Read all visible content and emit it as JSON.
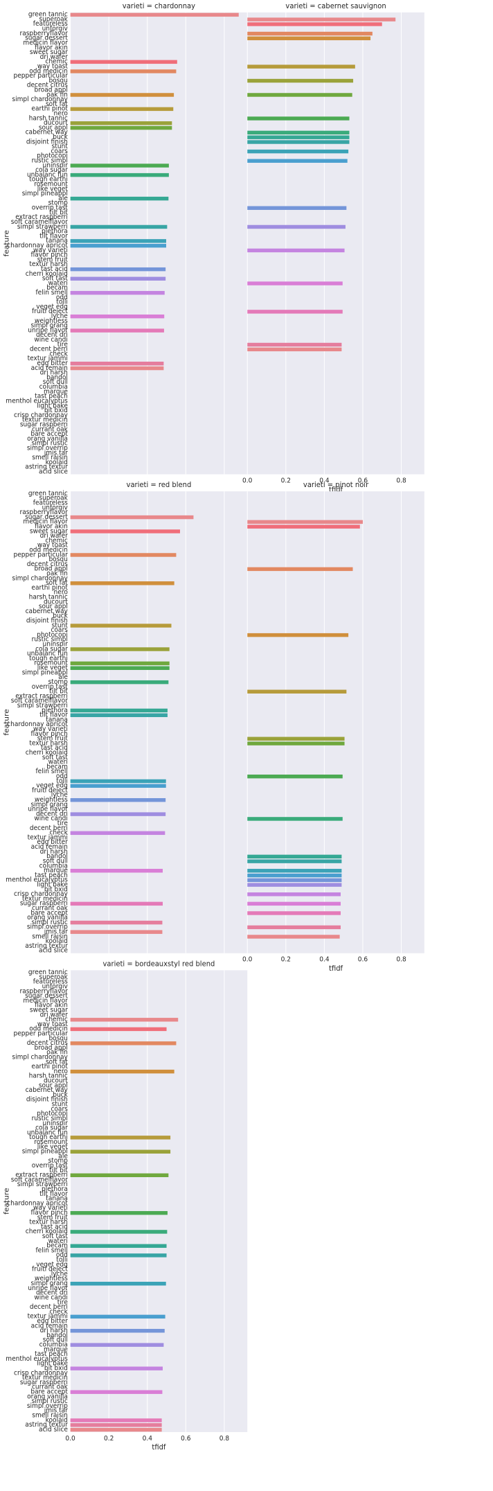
{
  "chart_data": {
    "type": "bar",
    "orientation": "horizontal",
    "xlabel": "tfidf",
    "ylabel": "feature",
    "xlim": [
      0,
      0.92
    ],
    "xticks": [
      "0.0",
      "0.2",
      "0.4",
      "0.6",
      "0.8"
    ],
    "grid": true,
    "categories": [
      "green tannic",
      "superoak",
      "featureless",
      "unforgiv",
      "raspberryflavor",
      "sugar dessert",
      "medicin flavor",
      "flavor akin",
      "sweet sugar",
      "dri wafer",
      "chemic",
      "way toast",
      "odd medicin",
      "pepper particular",
      "bosqu",
      "decent citrus",
      "broad appl",
      "oak fin",
      "simpl chardonnay",
      "soft fat",
      "earthi pinot",
      "nero",
      "harsh tannic",
      "ducourt",
      "sour appl",
      "cabernet way",
      "buck",
      "disjoint finish",
      "stunt",
      "coars",
      "photocopi",
      "rustic simpl",
      "uninspir",
      "cola sugar",
      "unbalanc fun",
      "tough earthi",
      "rosemount",
      "like veget",
      "simpl pineappl",
      "ale",
      "stomp",
      "overrip tast",
      "tilt bit",
      "extract raspberri",
      "soft caramelflavor",
      "simpl strawberri",
      "plethora",
      "tilt flavor",
      "tanana",
      "chardonnay apricot",
      "way varieti",
      "flavor pinch",
      "stem fruit",
      "textur harsh",
      "tast acid",
      "cherri koolaid",
      "soft tast",
      "wateri",
      "becam",
      "felin smell",
      "odd",
      "tolli",
      "veget edg",
      "fruiti deject",
      "lyche",
      "weightless",
      "simpl orang",
      "unripe flavor",
      "decent dri",
      "wine candi",
      "tire",
      "decent berri",
      "check",
      "textur jammi",
      "edg bitter",
      "acid remain",
      "dri harsh",
      "bandol",
      "soft dull",
      "columbia",
      "marque",
      "tast peach",
      "menthol eucalyptus",
      "light bake",
      "bit bxid",
      "crisp chardonnay",
      "textur medicin",
      "sugar raspberri",
      "currant oak",
      "bare accept",
      "orang vanilla",
      "simpl rustic",
      "simpl overrip",
      "jmis tar",
      "smell raisin",
      "koolaid",
      "astring textur",
      "acid slice"
    ],
    "panels": [
      {
        "title": "varieti = chardonnay",
        "bars": [
          [
            "green tannic",
            0.875
          ],
          [
            "chemic",
            0.555
          ],
          [
            "odd medicin",
            0.55
          ],
          [
            "oak fin",
            0.538
          ],
          [
            "earthi pinot",
            0.535
          ],
          [
            "ducourt",
            0.528
          ],
          [
            "sour appl",
            0.528
          ],
          [
            "uninspir",
            0.512
          ],
          [
            "unbalanc fun",
            0.512
          ],
          [
            "ale",
            0.51
          ],
          [
            "simpl strawberri",
            0.503
          ],
          [
            "tanana",
            0.498
          ],
          [
            "chardonnay apricot",
            0.498
          ],
          [
            "tast acid",
            0.495
          ],
          [
            "soft tast",
            0.495
          ],
          [
            "felin smell",
            0.49
          ],
          [
            "lyche",
            0.488
          ],
          [
            "unripe flavor",
            0.487
          ],
          [
            "edg bitter",
            0.485
          ],
          [
            "acid remain",
            0.485
          ]
        ]
      },
      {
        "title": "varieti = cabernet sauvignon",
        "bars": [
          [
            "superoak",
            0.77
          ],
          [
            "featureless",
            0.7
          ],
          [
            "raspberryflavor",
            0.65
          ],
          [
            "sugar dessert",
            0.64
          ],
          [
            "way toast",
            0.56
          ],
          [
            "bosqu",
            0.55
          ],
          [
            "oak fin",
            0.545
          ],
          [
            "harsh tannic",
            0.53
          ],
          [
            "cabernet way",
            0.53
          ],
          [
            "buck",
            0.53
          ],
          [
            "disjoint finish",
            0.53
          ],
          [
            "coars",
            0.525
          ],
          [
            "rustic simpl",
            0.52
          ],
          [
            "overrip tast",
            0.515
          ],
          [
            "simpl strawberri",
            0.51
          ],
          [
            "way varieti",
            0.505
          ],
          [
            "wateri",
            0.495
          ],
          [
            "fruiti deject",
            0.495
          ],
          [
            "tire",
            0.49
          ],
          [
            "decent berri",
            0.49
          ]
        ]
      },
      {
        "title": "varieti = red blend",
        "bars": [
          [
            "sugar dessert",
            0.64
          ],
          [
            "sweet sugar",
            0.57
          ],
          [
            "pepper particular",
            0.55
          ],
          [
            "soft fat",
            0.54
          ],
          [
            "stunt",
            0.525
          ],
          [
            "cola sugar",
            0.515
          ],
          [
            "rosemount",
            0.515
          ],
          [
            "like veget",
            0.515
          ],
          [
            "stomp",
            0.51
          ],
          [
            "plethora",
            0.505
          ],
          [
            "tilt flavor",
            0.505
          ],
          [
            "tolli",
            0.497
          ],
          [
            "veget edg",
            0.497
          ],
          [
            "weightless",
            0.495
          ],
          [
            "decent dri",
            0.495
          ],
          [
            "check",
            0.492
          ],
          [
            "marque",
            0.48
          ],
          [
            "sugar raspberri",
            0.48
          ],
          [
            "simpl rustic",
            0.478
          ],
          [
            "jmis tar",
            0.478
          ]
        ]
      },
      {
        "title": "varieti = pinot noir",
        "bars": [
          [
            "medicin flavor",
            0.6
          ],
          [
            "flavor akin",
            0.585
          ],
          [
            "broad appl",
            0.548
          ],
          [
            "photocopi",
            0.525
          ],
          [
            "tilt bit",
            0.515
          ],
          [
            "stem fruit",
            0.505
          ],
          [
            "textur harsh",
            0.505
          ],
          [
            "odd",
            0.495
          ],
          [
            "wine candi",
            0.495
          ],
          [
            "bandol",
            0.49
          ],
          [
            "soft dull",
            0.49
          ],
          [
            "marque",
            0.49
          ],
          [
            "tast peach",
            0.49
          ],
          [
            "menthol eucalyptus",
            0.49
          ],
          [
            "light bake",
            0.49
          ],
          [
            "crisp chardonnay",
            0.485
          ],
          [
            "sugar raspberri",
            0.485
          ],
          [
            "bare accept",
            0.485
          ],
          [
            "simpl overrip",
            0.485
          ],
          [
            "smell raisin",
            0.48
          ]
        ]
      },
      {
        "title": "varieti = bordeauxstyl red blend",
        "bars": [
          [
            "chemic",
            0.56
          ],
          [
            "odd medicin",
            0.5
          ],
          [
            "decent citrus",
            0.55
          ],
          [
            "nero",
            0.54
          ],
          [
            "tough earthi",
            0.52
          ],
          [
            "simpl pineappl",
            0.52
          ],
          [
            "extract raspberri",
            0.51
          ],
          [
            "flavor pinch",
            0.505
          ],
          [
            "cherri koolaid",
            0.503
          ],
          [
            "becam",
            0.5
          ],
          [
            "odd",
            0.5
          ],
          [
            "simpl orang",
            0.497
          ],
          [
            "textur jammi",
            0.493
          ],
          [
            "dri harsh",
            0.49
          ],
          [
            "columbia",
            0.485
          ],
          [
            "bit bxid",
            0.48
          ],
          [
            "bare accept",
            0.478
          ],
          [
            "koolaid",
            0.475
          ],
          [
            "astring textur",
            0.475
          ],
          [
            "acid slice",
            0.475
          ]
        ]
      }
    ],
    "palette": [
      "#e8888b",
      "#f06e7a",
      "#e28861",
      "#d08f3c",
      "#b69b3b",
      "#9aa23a",
      "#6fa83e",
      "#4caa53",
      "#3aab7b",
      "#35a894",
      "#38a5a5",
      "#3ba3b7",
      "#4a9fcf",
      "#7495d9",
      "#9f8de0",
      "#c484e0",
      "#d97ed6",
      "#e47ab8",
      "#e57d9d",
      "#e8888b"
    ],
    "bg_color": "#eaeaf2",
    "grid_color": "#ffffff"
  }
}
